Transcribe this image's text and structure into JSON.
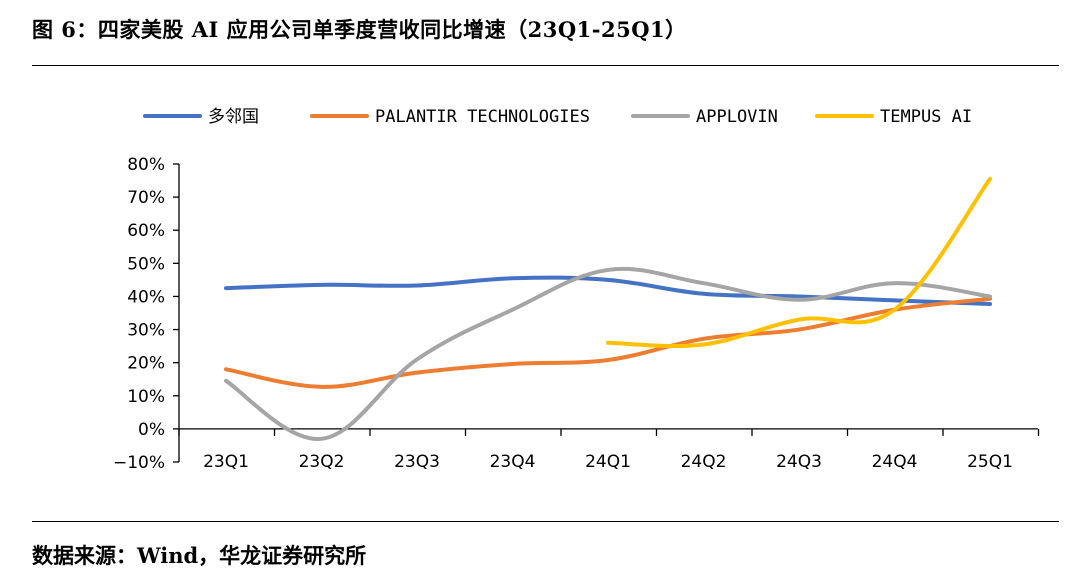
{
  "title": "图 6：四家美股 AI 应用公司单季度营收同比增速（23Q1-25Q1）",
  "source": "数据来源：Wind，华龙证券研究所",
  "chart_data": {
    "type": "line",
    "categories": [
      "23Q1",
      "23Q2",
      "23Q3",
      "23Q4",
      "24Q1",
      "24Q2",
      "24Q3",
      "24Q4",
      "25Q1"
    ],
    "ylim": [
      -10,
      80
    ],
    "yticks": [
      -10,
      0,
      10,
      20,
      30,
      40,
      50,
      60,
      70,
      80
    ],
    "ytick_labels": [
      "−10%",
      "0%",
      "10%",
      "20%",
      "30%",
      "40%",
      "50%",
      "60%",
      "70%",
      "80%"
    ],
    "legend_position": "top",
    "grid": false,
    "series": [
      {
        "name": "多邻国",
        "color": "#4472C4",
        "values": [
          42.5,
          43.5,
          43.3,
          45.5,
          45.0,
          40.8,
          40.0,
          38.8,
          37.7
        ]
      },
      {
        "name": "PALANTIR TECHNOLOGIES",
        "color": "#ED7D31",
        "values": [
          18.0,
          12.7,
          17.0,
          19.6,
          20.8,
          27.2,
          30.0,
          36.0,
          39.3
        ]
      },
      {
        "name": "APPLOVIN",
        "color": "#A5A5A5",
        "values": [
          14.5,
          -3.0,
          21.0,
          36.0,
          48.0,
          44.0,
          39.0,
          44.0,
          40.0
        ]
      },
      {
        "name": "TEMPUS AI",
        "color": "#FFC000",
        "values": [
          null,
          null,
          null,
          null,
          26.0,
          25.5,
          33.0,
          36.0,
          75.5
        ]
      }
    ]
  }
}
